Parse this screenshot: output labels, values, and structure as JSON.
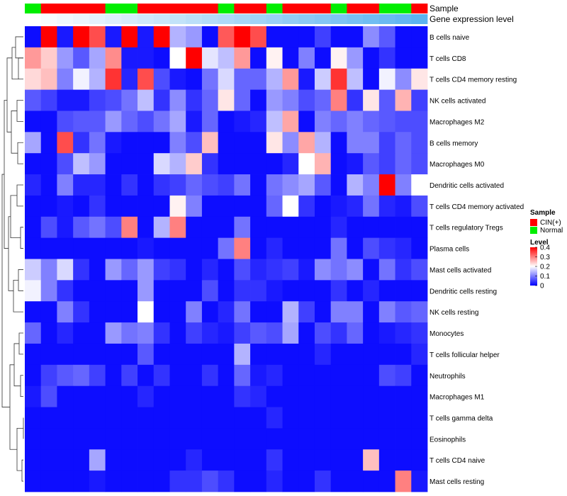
{
  "chart_data": {
    "type": "heatmap",
    "annotation_labels": {
      "sample": "Sample",
      "gene_expression": "Gene expression level"
    },
    "columns": 25,
    "sample_groups": [
      "Normal",
      "CIN(+)",
      "CIN(+)",
      "CIN(+)",
      "CIN(+)",
      "Normal",
      "Normal",
      "CIN(+)",
      "CIN(+)",
      "CIN(+)",
      "CIN(+)",
      "CIN(+)",
      "Normal",
      "CIN(+)",
      "CIN(+)",
      "Normal",
      "CIN(+)",
      "CIN(+)",
      "CIN(+)",
      "Normal",
      "CIN(+)",
      "CIN(+)",
      "Normal",
      "Normal",
      "CIN(+)"
    ],
    "rows": [
      "B cells naive",
      "T cells CD8",
      "T cells CD4 memory resting",
      "NK cells activated",
      "Macrophages M2",
      "B cells memory",
      "Macrophages M0",
      "Dendritic cells activated",
      "T cells CD4 memory activated",
      "T cells regulatory  Tregs",
      "Plasma cells",
      "Mast cells activated",
      "Dendritic cells resting",
      "NK cells resting",
      "Monocytes",
      "T cells follicular helper",
      "Neutrophils",
      "Macrophages M1",
      "T cells gamma delta",
      "Eosinophils",
      "T cells CD4 naive",
      "Mast cells resting"
    ],
    "values": [
      [
        0.01,
        0.4,
        0.02,
        0.4,
        0.34,
        0.02,
        0.4,
        0.02,
        0.4,
        0.14,
        0.12,
        0.01,
        0.33,
        0.4,
        0.34,
        0.01,
        0.01,
        0.01,
        0.05,
        0.01,
        0.01,
        0.11,
        0.07,
        0.01,
        0.01
      ],
      [
        0.28,
        0.24,
        0.12,
        0.07,
        0.13,
        0.29,
        0.02,
        0.02,
        0.01,
        0.2,
        0.4,
        0.18,
        0.15,
        0.28,
        0.01,
        0.21,
        0.01,
        0.1,
        0.01,
        0.21,
        0.12,
        0.01,
        0.04,
        0.01,
        0.01
      ],
      [
        0.23,
        0.25,
        0.1,
        0.19,
        0.14,
        0.36,
        0.03,
        0.34,
        0.06,
        0.02,
        0.01,
        0.09,
        0.17,
        0.08,
        0.08,
        0.14,
        0.28,
        0.02,
        0.16,
        0.36,
        0.15,
        0.01,
        0.19,
        0.11,
        0.22
      ],
      [
        0.07,
        0.05,
        0.02,
        0.02,
        0.05,
        0.06,
        0.09,
        0.15,
        0.04,
        0.11,
        0.04,
        0.08,
        0.22,
        0.08,
        0.01,
        0.12,
        0.1,
        0.06,
        0.08,
        0.3,
        0.04,
        0.22,
        0.07,
        0.26,
        0.05
      ],
      [
        0.01,
        0.01,
        0.06,
        0.07,
        0.07,
        0.12,
        0.08,
        0.06,
        0.09,
        0.13,
        0.02,
        0.08,
        0.01,
        0.02,
        0.03,
        0.15,
        0.27,
        0.01,
        0.1,
        0.08,
        0.1,
        0.08,
        0.07,
        0.06,
        0.06
      ],
      [
        0.13,
        0.01,
        0.34,
        0.04,
        0.09,
        0.02,
        0.01,
        0.01,
        0.01,
        0.1,
        0.06,
        0.25,
        0.01,
        0.01,
        0.01,
        0.22,
        0.11,
        0.27,
        0.14,
        0.01,
        0.1,
        0.1,
        0.05,
        0.08,
        0.06
      ],
      [
        0.01,
        0.01,
        0.06,
        0.15,
        0.12,
        0.01,
        0.01,
        0.01,
        0.17,
        0.14,
        0.24,
        0.04,
        0.01,
        0.01,
        0.01,
        0.01,
        0.03,
        0.2,
        0.26,
        0.01,
        0.02,
        0.07,
        0.05,
        0.08,
        0.06
      ],
      [
        0.03,
        0.01,
        0.1,
        0.03,
        0.03,
        0.01,
        0.04,
        0.01,
        0.04,
        0.05,
        0.08,
        0.06,
        0.05,
        0.09,
        0.01,
        0.09,
        0.11,
        0.13,
        0.07,
        0.01,
        0.14,
        0.1,
        0.4,
        0.1,
        0.2
      ],
      [
        0.01,
        0.01,
        0.02,
        0.01,
        0.04,
        0.01,
        0.01,
        0.01,
        0.01,
        0.21,
        0.1,
        0.01,
        0.01,
        0.01,
        0.01,
        0.08,
        0.2,
        0.04,
        0.01,
        0.02,
        0.03,
        0.09,
        0.03,
        0.02,
        0.06
      ],
      [
        0.01,
        0.06,
        0.02,
        0.07,
        0.09,
        0.06,
        0.3,
        0.01,
        0.14,
        0.3,
        0.01,
        0.01,
        0.01,
        0.09,
        0.01,
        0.01,
        0.01,
        0.01,
        0.01,
        0.03,
        0.01,
        0.01,
        0.01,
        0.01,
        0.01
      ],
      [
        0.01,
        0.01,
        0.01,
        0.01,
        0.01,
        0.01,
        0.01,
        0.02,
        0.01,
        0.01,
        0.01,
        0.01,
        0.09,
        0.3,
        0.01,
        0.03,
        0.01,
        0.01,
        0.01,
        0.09,
        0.01,
        0.06,
        0.04,
        0.03,
        0.01
      ],
      [
        0.16,
        0.1,
        0.17,
        0.04,
        0.01,
        0.12,
        0.08,
        0.12,
        0.05,
        0.04,
        0.01,
        0.03,
        0.01,
        0.06,
        0.03,
        0.04,
        0.05,
        0.02,
        0.11,
        0.09,
        0.11,
        0.01,
        0.09,
        0.04,
        0.06
      ],
      [
        0.19,
        0.1,
        0.04,
        0.01,
        0.01,
        0.01,
        0.01,
        0.12,
        0.01,
        0.01,
        0.01,
        0.06,
        0.01,
        0.04,
        0.04,
        0.02,
        0.01,
        0.01,
        0.01,
        0.04,
        0.01,
        0.03,
        0.01,
        0.01,
        0.01
      ],
      [
        0.01,
        0.01,
        0.1,
        0.04,
        0.01,
        0.01,
        0.01,
        0.2,
        0.01,
        0.01,
        0.1,
        0.01,
        0.03,
        0.09,
        0.01,
        0.01,
        0.14,
        0.05,
        0.01,
        0.1,
        0.1,
        0.01,
        0.1,
        0.07,
        0.08
      ],
      [
        0.08,
        0.01,
        0.03,
        0.01,
        0.01,
        0.12,
        0.09,
        0.1,
        0.04,
        0.01,
        0.05,
        0.03,
        0.02,
        0.05,
        0.07,
        0.06,
        0.13,
        0.01,
        0.06,
        0.04,
        0.08,
        0.01,
        0.02,
        0.03,
        0.04
      ],
      [
        0.01,
        0.01,
        0.01,
        0.01,
        0.01,
        0.01,
        0.01,
        0.07,
        0.01,
        0.01,
        0.01,
        0.01,
        0.01,
        0.14,
        0.01,
        0.01,
        0.01,
        0.01,
        0.03,
        0.01,
        0.01,
        0.01,
        0.01,
        0.01,
        0.03
      ],
      [
        0.01,
        0.05,
        0.07,
        0.08,
        0.05,
        0.01,
        0.05,
        0.01,
        0.04,
        0.01,
        0.01,
        0.04,
        0.01,
        0.08,
        0.02,
        0.03,
        0.01,
        0.01,
        0.01,
        0.01,
        0.01,
        0.01,
        0.06,
        0.05,
        0.01
      ],
      [
        0.02,
        0.06,
        0.01,
        0.01,
        0.01,
        0.01,
        0.01,
        0.03,
        0.01,
        0.01,
        0.01,
        0.01,
        0.01,
        0.04,
        0.03,
        0.01,
        0.01,
        0.01,
        0.01,
        0.01,
        0.01,
        0.01,
        0.01,
        0.01,
        0.01
      ],
      [
        0.01,
        0.01,
        0.01,
        0.01,
        0.01,
        0.01,
        0.01,
        0.01,
        0.01,
        0.01,
        0.01,
        0.01,
        0.01,
        0.01,
        0.01,
        0.03,
        0.01,
        0.01,
        0.01,
        0.01,
        0.01,
        0.01,
        0.01,
        0.01,
        0.01
      ],
      [
        0.01,
        0.01,
        0.01,
        0.01,
        0.01,
        0.01,
        0.01,
        0.01,
        0.01,
        0.01,
        0.01,
        0.01,
        0.01,
        0.01,
        0.01,
        0.01,
        0.01,
        0.01,
        0.01,
        0.01,
        0.01,
        0.01,
        0.01,
        0.01,
        0.01
      ],
      [
        0.01,
        0.01,
        0.01,
        0.01,
        0.13,
        0.01,
        0.01,
        0.01,
        0.01,
        0.01,
        0.03,
        0.01,
        0.01,
        0.01,
        0.01,
        0.04,
        0.01,
        0.01,
        0.01,
        0.01,
        0.01,
        0.25,
        0.01,
        0.01,
        0.01
      ],
      [
        0.01,
        0.01,
        0.01,
        0.01,
        0.02,
        0.01,
        0.01,
        0.01,
        0.01,
        0.04,
        0.04,
        0.06,
        0.04,
        0.01,
        0.01,
        0.03,
        0.01,
        0.01,
        0.04,
        0.01,
        0.01,
        0.01,
        0.01,
        0.3,
        0.02
      ]
    ],
    "legend": {
      "sample_title": "Sample",
      "sample_entries": [
        {
          "label": "CIN(+)",
          "color": "#ff0000"
        },
        {
          "label": "Normal",
          "color": "#00ee00"
        }
      ],
      "level_title": "Level",
      "level_ticks": [
        {
          "label": "0.4",
          "value": 0.4
        },
        {
          "label": "0.3",
          "value": 0.3
        },
        {
          "label": "0.2",
          "value": 0.2
        },
        {
          "label": "0.1",
          "value": 0.1
        },
        {
          "label": "0",
          "value": 0
        }
      ],
      "range": [
        0,
        0.4
      ]
    },
    "colors": {
      "low": "#0000ff",
      "mid": "#ffffff",
      "high": "#ff0000",
      "expr_low": "#ffffff",
      "expr_high": "#5cb3f0",
      "dendrogram": "#333333"
    }
  }
}
